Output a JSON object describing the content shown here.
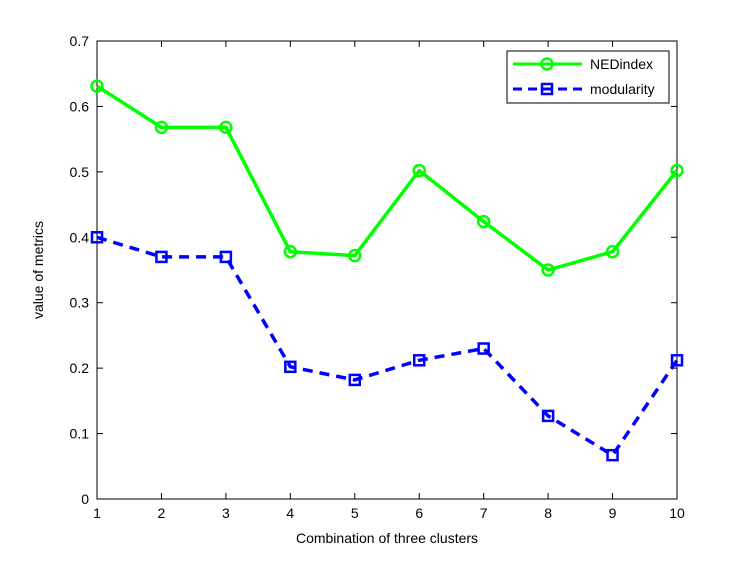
{
  "chart_data": {
    "type": "line",
    "xlabel": "Combination of three clusters",
    "ylabel": "value of metrics",
    "x": [
      1,
      2,
      3,
      4,
      5,
      6,
      7,
      8,
      9,
      10
    ],
    "xlim": [
      1,
      10
    ],
    "ylim": [
      0,
      0.7
    ],
    "xticks": [
      "1",
      "2",
      "3",
      "4",
      "5",
      "6",
      "7",
      "8",
      "9",
      "10"
    ],
    "yticks": [
      "0",
      "0.1",
      "0.2",
      "0.3",
      "0.4",
      "0.5",
      "0.6",
      "0.7"
    ],
    "grid": false,
    "legend_position": "top-right",
    "series": [
      {
        "name": "NEDindex",
        "color": "#00ff00",
        "line_style": "solid",
        "marker": "circle",
        "values": [
          0.631,
          0.568,
          0.568,
          0.378,
          0.372,
          0.502,
          0.424,
          0.35,
          0.378,
          0.502
        ]
      },
      {
        "name": "modularity",
        "color": "#0000ff",
        "line_style": "dashed",
        "marker": "square",
        "values": [
          0.4,
          0.37,
          0.37,
          0.202,
          0.182,
          0.212,
          0.23,
          0.127,
          0.067,
          0.212
        ]
      }
    ]
  }
}
